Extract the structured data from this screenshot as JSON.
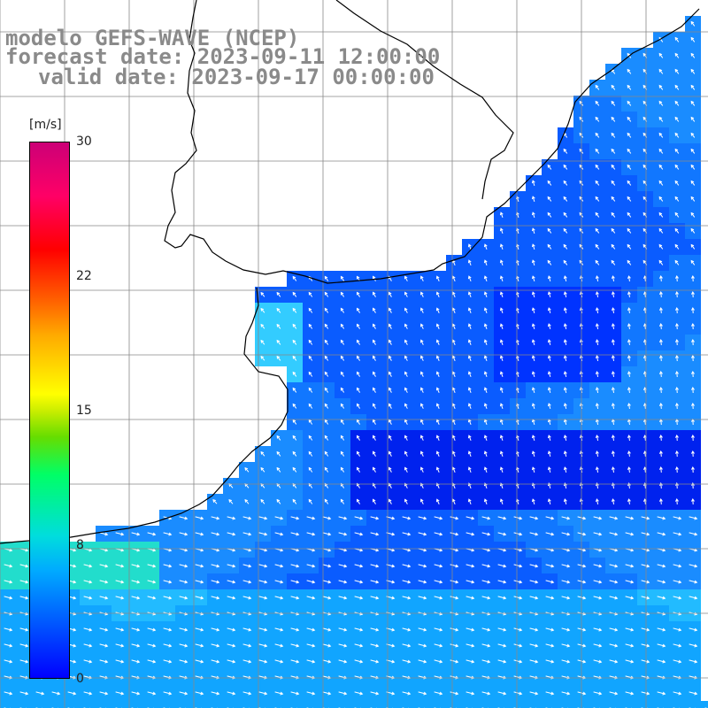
{
  "header": {
    "line1": "modelo GEFS-WAVE (NCEP)",
    "line2": "forecast date: 2023-09-11 12:00:00",
    "line3": "valid date: 2023-09-17 00:00:00"
  },
  "colorbar": {
    "unit": "[m/s]",
    "ticks": [
      "30",
      "22",
      "15",
      "8",
      "0"
    ],
    "tick_values": [
      30,
      22,
      15,
      8,
      0
    ],
    "min": 0,
    "max": 30,
    "colors": [
      "#0000ff",
      "#00aaff",
      "#00dddd",
      "#00ff66",
      "#ffff00",
      "#ff6600",
      "#ff0000",
      "#cc0077"
    ]
  },
  "map": {
    "grid_color": "#888888",
    "coastline_color": "#000000",
    "ocean_dominant_color": "#1a8cff",
    "background_color": "#ffffff"
  }
}
